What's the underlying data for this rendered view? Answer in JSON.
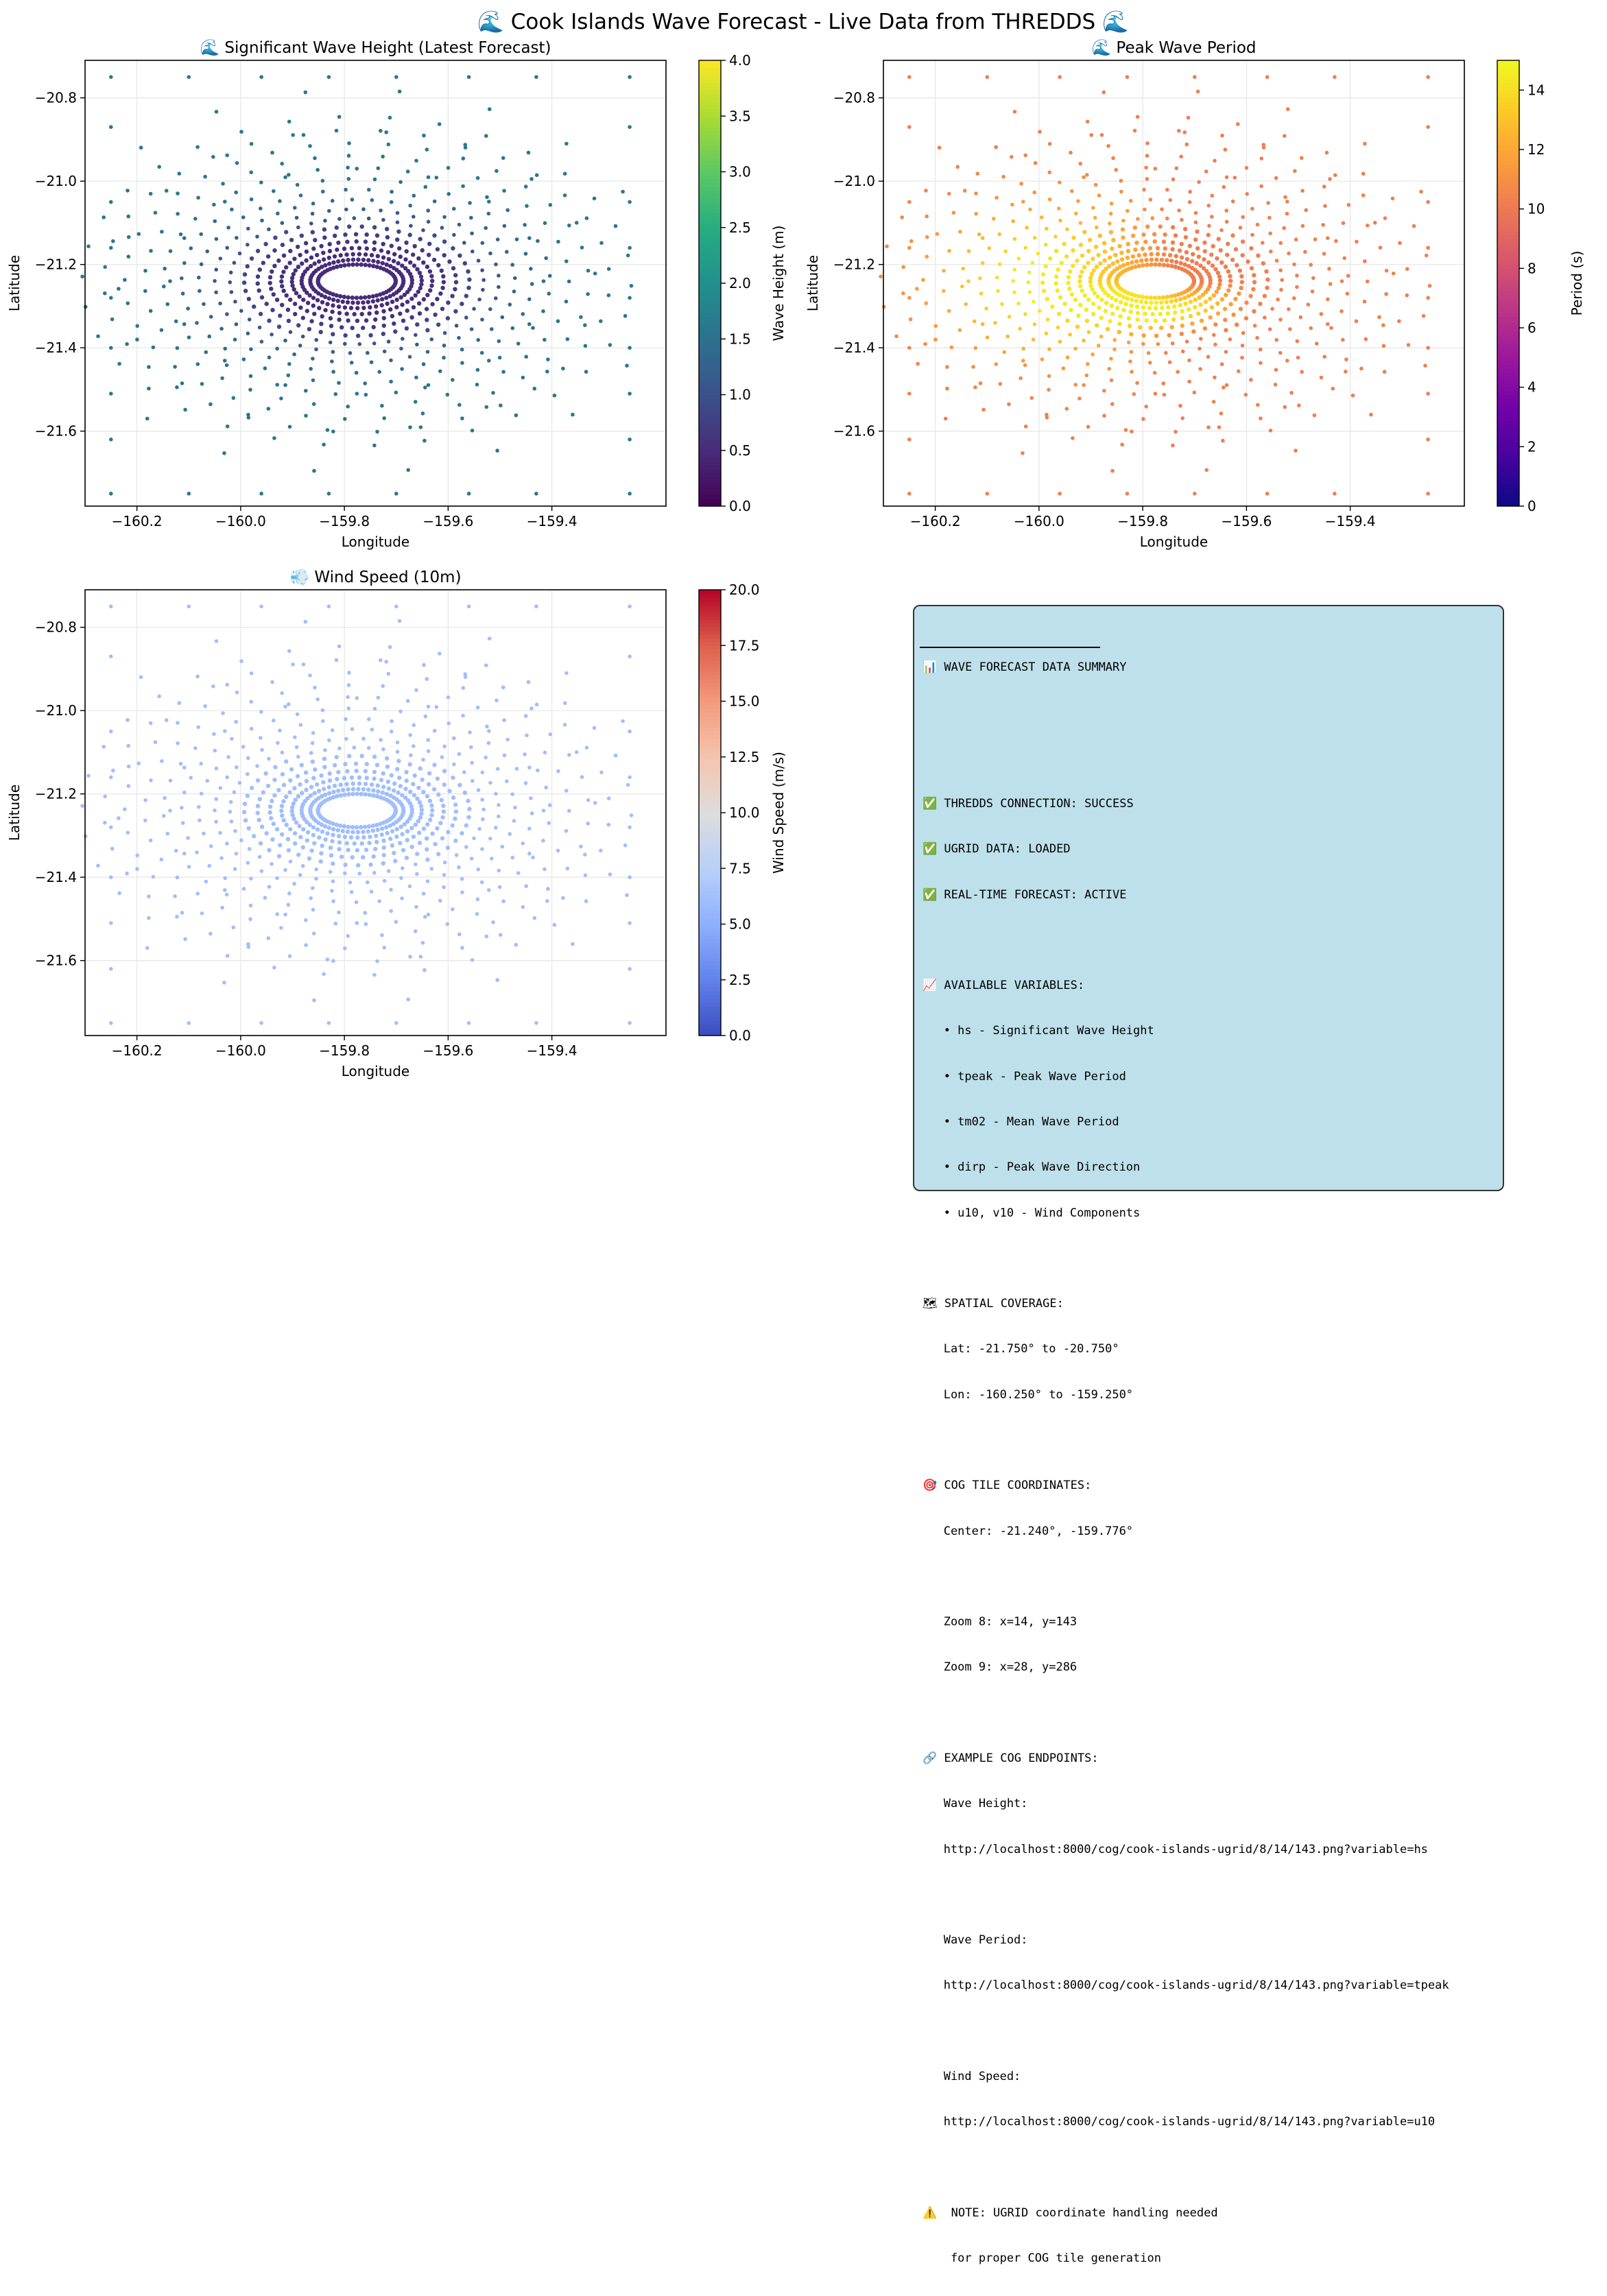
{
  "figure_title": "🌊 Cook Islands Wave Forecast - Live Data from THREDDS 🌊",
  "colors": {
    "background": "#ffffff",
    "grid": "#e6e6e6",
    "axes": "#000000",
    "summary_bg": "#add8e6",
    "summary_border": "#333333"
  },
  "icons": {
    "title": "wave-emoji-icon",
    "wind": "wind-emoji-icon",
    "status": "check-mark-emoji-icon"
  },
  "chart_data": [
    {
      "type": "scatter",
      "title": "🌊 Significant Wave Height (Latest Forecast)",
      "xlabel": "Longitude",
      "ylabel": "Latitude",
      "xlim": [
        -160.3,
        -159.18
      ],
      "ylim": [
        -21.78,
        -20.71
      ],
      "xticks": [
        -160.2,
        -160.0,
        -159.8,
        -159.6,
        -159.4
      ],
      "xtick_labels": [
        "−160.2",
        "−160.0",
        "−159.8",
        "−159.6",
        "−159.4"
      ],
      "yticks": [
        -20.8,
        -21.0,
        -21.2,
        -21.4,
        -21.6
      ],
      "ytick_labels": [
        "−20.8",
        "−21.0",
        "−21.2",
        "−21.4",
        "−21.6"
      ],
      "grid": true,
      "colormap": "viridis",
      "colorbar": {
        "label": "Wave Height (m)",
        "min": 0,
        "max": 4,
        "ticks": [
          0,
          0.5,
          1,
          1.5,
          2,
          2.5,
          3,
          3.5,
          4
        ],
        "tick_labels": [
          "0.0",
          "0.5",
          "1.0",
          "1.5",
          "2.0",
          "2.5",
          "3.0",
          "3.5",
          "4.0"
        ]
      },
      "field": {
        "center": [
          -159.776,
          -21.24
        ],
        "outer_value": 1.6,
        "near_value": 0.5,
        "west_value": 0.5,
        "west_bias": 0.0
      },
      "marker_size": 3
    },
    {
      "type": "scatter",
      "title": "🌊 Peak Wave Period",
      "xlabel": "Longitude",
      "ylabel": "Latitude",
      "xlim": [
        -160.3,
        -159.18
      ],
      "ylim": [
        -21.78,
        -20.71
      ],
      "xticks": [
        -160.2,
        -160.0,
        -159.8,
        -159.6,
        -159.4
      ],
      "xtick_labels": [
        "−160.2",
        "−160.0",
        "−159.8",
        "−159.6",
        "−159.4"
      ],
      "yticks": [
        -20.8,
        -21.0,
        -21.2,
        -21.4,
        -21.6
      ],
      "ytick_labels": [
        "−20.8",
        "−21.0",
        "−21.2",
        "−21.4",
        "−21.6"
      ],
      "grid": true,
      "colormap": "plasma",
      "colorbar": {
        "label": "Period (s)",
        "min": 0,
        "max": 15,
        "ticks": [
          0,
          2,
          4,
          6,
          8,
          10,
          12,
          14
        ],
        "tick_labels": [
          "0",
          "2",
          "4",
          "6",
          "8",
          "10",
          "12",
          "14"
        ]
      },
      "field": {
        "center": [
          -159.776,
          -21.24
        ],
        "outer_value": 10.2,
        "near_value": 10.2,
        "west_value": 14.5,
        "west_bias": 1.0
      },
      "marker_size": 3
    },
    {
      "type": "scatter",
      "title": "💨 Wind Speed (10m)",
      "xlabel": "Longitude",
      "ylabel": "Latitude",
      "xlim": [
        -160.3,
        -159.18
      ],
      "ylim": [
        -21.78,
        -20.71
      ],
      "xticks": [
        -160.2,
        -160.0,
        -159.8,
        -159.6,
        -159.4
      ],
      "xtick_labels": [
        "−160.2",
        "−160.0",
        "−159.8",
        "−159.6",
        "−159.4"
      ],
      "yticks": [
        -20.8,
        -21.0,
        -21.2,
        -21.4,
        -21.6
      ],
      "ytick_labels": [
        "−20.8",
        "−21.0",
        "−21.2",
        "−21.4",
        "−21.6"
      ],
      "grid": true,
      "colormap": "coolwarm",
      "colorbar": {
        "label": "Wind Speed (m/s)",
        "min": 0,
        "max": 20,
        "ticks": [
          0,
          2.5,
          5,
          7.5,
          10,
          12.5,
          15,
          17.5,
          20
        ],
        "tick_labels": [
          "0.0",
          "2.5",
          "5.0",
          "7.5",
          "10.0",
          "12.5",
          "15.0",
          "17.5",
          "20.0"
        ]
      },
      "field": {
        "center": [
          -159.776,
          -21.24
        ],
        "outer_value": 6.1,
        "near_value": 6.1,
        "west_value": 6.1,
        "west_bias": 0.0
      },
      "marker_size": 3
    }
  ],
  "summary": {
    "lines": [
      "📊 WAVE FORECAST DATA SUMMARY",
      "",
      "",
      "✅ THREDDS CONNECTION: SUCCESS",
      "✅ UGRID DATA: LOADED",
      "✅ REAL-TIME FORECAST: ACTIVE",
      "",
      "📈 AVAILABLE VARIABLES:",
      "   • hs - Significant Wave Height",
      "   • tpeak - Peak Wave Period",
      "   • tm02 - Mean Wave Period",
      "   • dirp - Peak Wave Direction",
      "   • u10, v10 - Wind Components",
      "",
      "🗺 SPATIAL COVERAGE:",
      "   Lat: -21.750° to -20.750°",
      "   Lon: -160.250° to -159.250°",
      "",
      "🎯 COG TILE COORDINATES:",
      "   Center: -21.240°, -159.776°",
      "",
      "   Zoom 8: x=14, y=143",
      "   Zoom 9: x=28, y=286",
      "",
      "🔗 EXAMPLE COG ENDPOINTS:",
      "   Wave Height:",
      "   http://localhost:8000/cog/cook-islands-ugrid/8/14/143.png?variable=hs",
      "",
      "   Wave Period:",
      "   http://localhost:8000/cog/cook-islands-ugrid/8/14/143.png?variable=tpeak",
      "",
      "   Wind Speed:",
      "   http://localhost:8000/cog/cook-islands-ugrid/8/14/143.png?variable=u10",
      "",
      "⚠️  NOTE: UGRID coordinate handling needed",
      "    for proper COG tile generation"
    ]
  }
}
